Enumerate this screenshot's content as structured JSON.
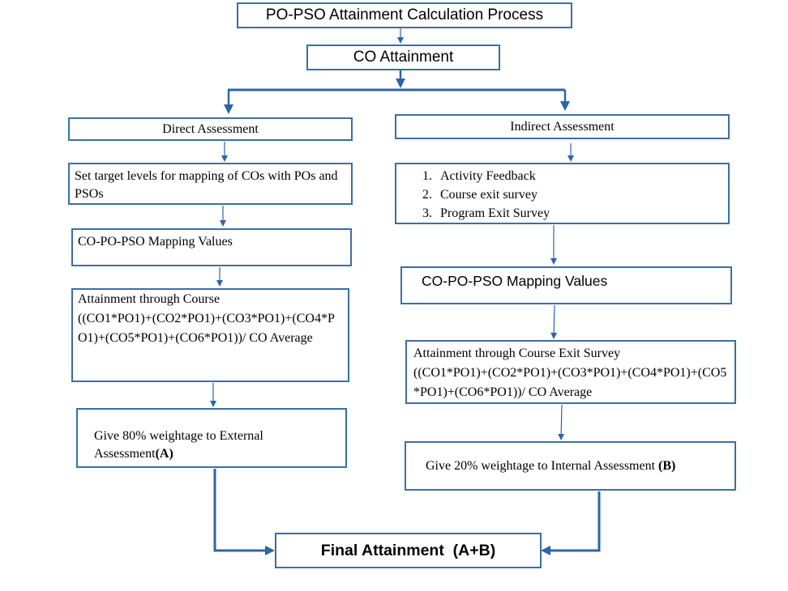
{
  "title": "PO-PSO Attainment Calculation Process",
  "co_attainment": "CO Attainment",
  "direct": {
    "heading": "Direct Assessment",
    "target": "Set target levels for mapping of COs with POs and PSOs",
    "mapping": "CO-PO-PSO Mapping Values",
    "attainment_title": "Attainment through Course",
    "attainment_formula": "((CO1*PO1)+(CO2*PO1)+(CO3*PO1)+(CO4*PO1)+(CO5*PO1)+(CO6*PO1))/ CO Average",
    "weightage_text": "Give 80% weightage to External Assessment",
    "weightage_tag": "(A)"
  },
  "indirect": {
    "heading": "Indirect Assessment",
    "items": [
      "Activity Feedback",
      "Course exit survey",
      "Program Exit Survey"
    ],
    "mapping": "CO-PO-PSO Mapping Values",
    "attainment_title": "Attainment through Course Exit Survey",
    "attainment_formula": "((CO1*PO1)+(CO2*PO1)+(CO3*PO1)+(CO4*PO1)+(CO5*PO1)+(CO6*PO1))/ CO Average",
    "weightage_text": "Give 20% weightage to Internal Assessment",
    "weightage_tag": "(B)"
  },
  "final": "Final Attainment  (A+B)",
  "colors": {
    "border": "#3c6ea5",
    "arrow": "#2e64a8"
  }
}
